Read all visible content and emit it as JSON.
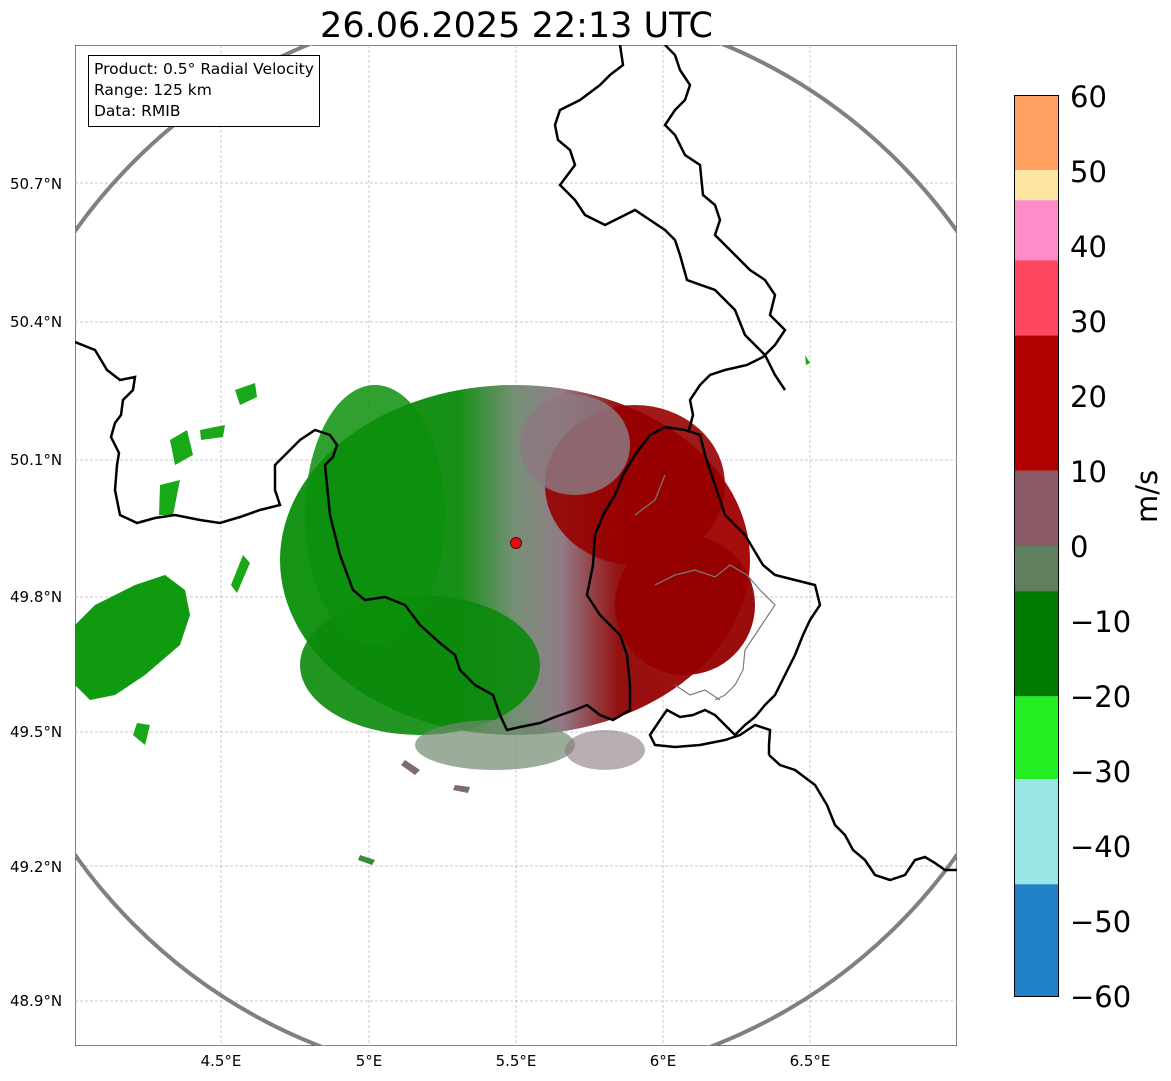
{
  "title": "26.06.2025 22:13 UTC",
  "info": {
    "product": "Product: 0.5° Radial Velocity",
    "range": "Range: 125 km",
    "source": "Data: RMIB"
  },
  "axes": {
    "lat_ticks": [
      "50.7°N",
      "50.4°N",
      "50.1°N",
      "49.8°N",
      "49.5°N",
      "49.2°N",
      "48.9°N"
    ],
    "lon_ticks": [
      "4.5°E",
      "5°E",
      "5.5°E",
      "6°E",
      "6.5°E"
    ]
  },
  "colorbar": {
    "unit": "m/s",
    "ticks": [
      "60",
      "50",
      "40",
      "30",
      "20",
      "10",
      "0",
      "−10",
      "−20",
      "−30",
      "−40",
      "−50",
      "−60"
    ],
    "range": [
      -60,
      60
    ],
    "colors": [
      {
        "from": 50,
        "to": 60,
        "color": "#ffa060"
      },
      {
        "from": 46,
        "to": 50,
        "color": "#ffe6a0"
      },
      {
        "from": 38,
        "to": 46,
        "color": "#ff8cc8"
      },
      {
        "from": 28,
        "to": 38,
        "color": "#ff4860"
      },
      {
        "from": 10,
        "to": 28,
        "color": "#b00000"
      },
      {
        "from": 0,
        "to": 10,
        "color": "#8a5a66"
      },
      {
        "from": -6,
        "to": 0,
        "color": "#5f7f5f"
      },
      {
        "from": -20,
        "to": -6,
        "color": "#007a00"
      },
      {
        "from": -31,
        "to": -20,
        "color": "#22ee22"
      },
      {
        "from": -45,
        "to": -31,
        "color": "#9ae6e6"
      },
      {
        "from": -60,
        "to": -45,
        "color": "#2080c8"
      }
    ]
  },
  "colors": {
    "approach": "#0a8f0a",
    "recede": "#a00000",
    "zero": "#8c7f80",
    "range_ring": "#808080",
    "border": "#000000",
    "radar_site": "#e01010"
  }
}
